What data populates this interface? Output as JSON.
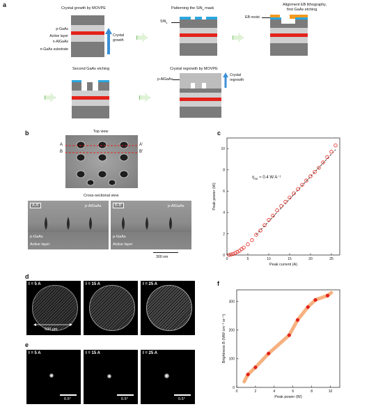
{
  "panel_a": {
    "letter": "a",
    "step1_title": "Crystal growth by MOVPE",
    "step2_title": "Patterning the SiN",
    "step2_sub": "x",
    "step2_tail": " mask",
    "step3_title_line1": "Alignment EB lithography,",
    "step3_title_line2": "first GaAs etching",
    "step4_title": "Second GaAs etching",
    "step5_title": "Crystal regrowth by MOVPE",
    "labels_left": [
      "p-GaAs",
      "Active layer",
      "n-AlGaAs",
      "n-GaAs substrate"
    ],
    "growth_label_line1": "Crystal",
    "growth_label_line2": "growth",
    "sinx_label": "SiN",
    "sinx_sub": "x",
    "eb_label": "EB resist",
    "palgaas_label": "p-AlGaAs",
    "regrowth_line1": "Crystal",
    "regrowth_line2": "regrowth",
    "colors": {
      "gaas_dark": "#7b7b7b",
      "gaas_light": "#cfcfcf",
      "active": "#e3231b",
      "sinx": "#2aa7e0",
      "resist": "#f39a1f",
      "arrow": "#3b8fd6",
      "regrowth": "#bdbdbd"
    }
  },
  "panel_b": {
    "letter": "b",
    "top_view_title": "Top view",
    "cut_a": "A",
    "cut_a_prime": "A'",
    "cut_b": "B",
    "cut_b_prime": "B'",
    "cross_title": "Cross-sectional view",
    "left_tag": "A-A'",
    "right_tag": "B-B'",
    "palgaas": "p-AlGaAs",
    "pgaas": "p-GaAs",
    "active": "Active layer",
    "scale": "300 nm"
  },
  "panel_c": {
    "letter": "c",
    "annotation_eta": "η",
    "annotation_sub": "SE",
    "annotation_tail": " ≈ 0.4 W A⁻¹"
  },
  "panel_d": {
    "letter": "d",
    "labels": [
      "I = 5 A",
      "I = 15 A",
      "I = 25 A"
    ],
    "scale": "500 μm"
  },
  "panel_e": {
    "letter": "e",
    "labels": [
      "I = 5 A",
      "I = 15 A",
      "I = 25 A"
    ],
    "scale": "0.5°"
  },
  "panel_f": {
    "letter": "f"
  },
  "chart_data": [
    {
      "type": "scatter",
      "panel": "c",
      "xlabel": "Peak current (A)",
      "ylabel": "Peak power (W)",
      "xlim": [
        0,
        27
      ],
      "ylim": [
        0,
        11
      ],
      "xticks": [
        0,
        5,
        10,
        15,
        20,
        25
      ],
      "yticks": [
        0,
        2,
        4,
        6,
        8,
        10
      ],
      "marker": "open-circle",
      "marker_color": "#e3231b",
      "x": [
        0.5,
        1,
        1.5,
        2,
        2.5,
        3,
        3.5,
        4,
        5,
        6,
        7,
        8,
        9,
        10,
        11,
        12,
        13,
        14,
        15,
        16,
        17,
        18,
        19,
        20,
        21,
        22,
        23,
        24,
        25,
        26
      ],
      "y": [
        0.0,
        0.05,
        0.1,
        0.2,
        0.3,
        0.4,
        0.55,
        0.7,
        1.0,
        1.4,
        1.9,
        2.3,
        2.8,
        3.3,
        3.7,
        4.2,
        4.6,
        5.0,
        5.4,
        5.8,
        6.2,
        6.6,
        7.0,
        7.4,
        7.8,
        8.2,
        8.7,
        9.2,
        9.7,
        10.3
      ],
      "fit_line": {
        "x": [
          7,
          26
        ],
        "y": [
          1.9,
          9.9
        ],
        "style": "dashed",
        "color": "#111111"
      }
    },
    {
      "type": "scatter",
      "panel": "f",
      "xlabel": "Peak power (W)",
      "ylabel": "Brightness B (MW cm⁻² sr⁻¹)",
      "xlim": [
        0,
        11
      ],
      "ylim": [
        0,
        340
      ],
      "xticks": [
        0,
        2,
        4,
        6,
        8,
        10
      ],
      "yticks": [
        0,
        100,
        200,
        300
      ],
      "marker": "filled-circle",
      "marker_color": "#e3231b",
      "curve_color": "#f4a36a",
      "x": [
        1.2,
        2.0,
        3.4,
        5.6,
        6.5,
        7.6,
        8.4,
        9.7
      ],
      "y": [
        45,
        70,
        118,
        182,
        235,
        280,
        305,
        320
      ]
    }
  ]
}
